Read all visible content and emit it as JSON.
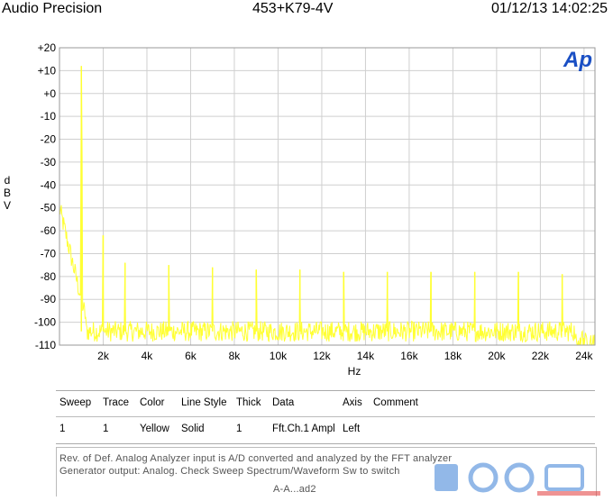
{
  "header": {
    "left": "Audio Precision",
    "center": "453+K79-4V",
    "right": "01/12/13 14:02:25"
  },
  "logo": {
    "text": "Ap",
    "color": "#1a4fc4"
  },
  "chart_data": {
    "type": "line",
    "xlabel": "Hz",
    "ylabel": "dBV",
    "xlim": [
      0,
      24500
    ],
    "ylim": [
      -110,
      20
    ],
    "x_ticks": [
      2000,
      4000,
      6000,
      8000,
      10000,
      12000,
      14000,
      16000,
      18000,
      20000,
      22000,
      24000
    ],
    "x_tick_labels": [
      "2k",
      "4k",
      "6k",
      "8k",
      "10k",
      "12k",
      "14k",
      "16k",
      "18k",
      "20k",
      "22k",
      "24k"
    ],
    "y_ticks": [
      20,
      10,
      0,
      -10,
      -20,
      -30,
      -40,
      -50,
      -60,
      -70,
      -80,
      -90,
      -100,
      -110
    ],
    "y_tick_labels": [
      "+20",
      "+10",
      "+0",
      "-10",
      "-20",
      "-30",
      "-40",
      "-50",
      "-60",
      "-70",
      "-80",
      "-90",
      "-100",
      "-110"
    ],
    "grid": true,
    "series": [
      {
        "color": "#ffff33",
        "peaks": [
          {
            "x": 1000,
            "y": 12
          },
          {
            "x": 2000,
            "y": -62
          },
          {
            "x": 3000,
            "y": -74
          },
          {
            "x": 5000,
            "y": -75
          },
          {
            "x": 7000,
            "y": -76
          },
          {
            "x": 9000,
            "y": -77
          },
          {
            "x": 11000,
            "y": -77
          },
          {
            "x": 13000,
            "y": -78
          },
          {
            "x": 15000,
            "y": -78
          },
          {
            "x": 17000,
            "y": -78
          },
          {
            "x": 19000,
            "y": -78
          },
          {
            "x": 21000,
            "y": -78
          },
          {
            "x": 23000,
            "y": -79
          }
        ],
        "noise_floor": -104,
        "low_freq_start": -50
      }
    ]
  },
  "legend": {
    "headers": [
      "Sweep",
      "Trace",
      "Color",
      "Line Style",
      "Thick",
      "Data",
      "Axis",
      "Comment"
    ],
    "rows": [
      [
        "1",
        "1",
        "Yellow",
        "Solid",
        "1",
        "Fft.Ch.1 Ampl",
        "Left",
        ""
      ]
    ]
  },
  "notes": {
    "line1": "Rev. of Def. Analog Analyzer input is A/D converted and analyzed by the FFT analyzer",
    "line2": "Generator output: Analog. Check Sweep Spectrum/Waveform Sw to switch",
    "line3": "A-A...ad2"
  }
}
